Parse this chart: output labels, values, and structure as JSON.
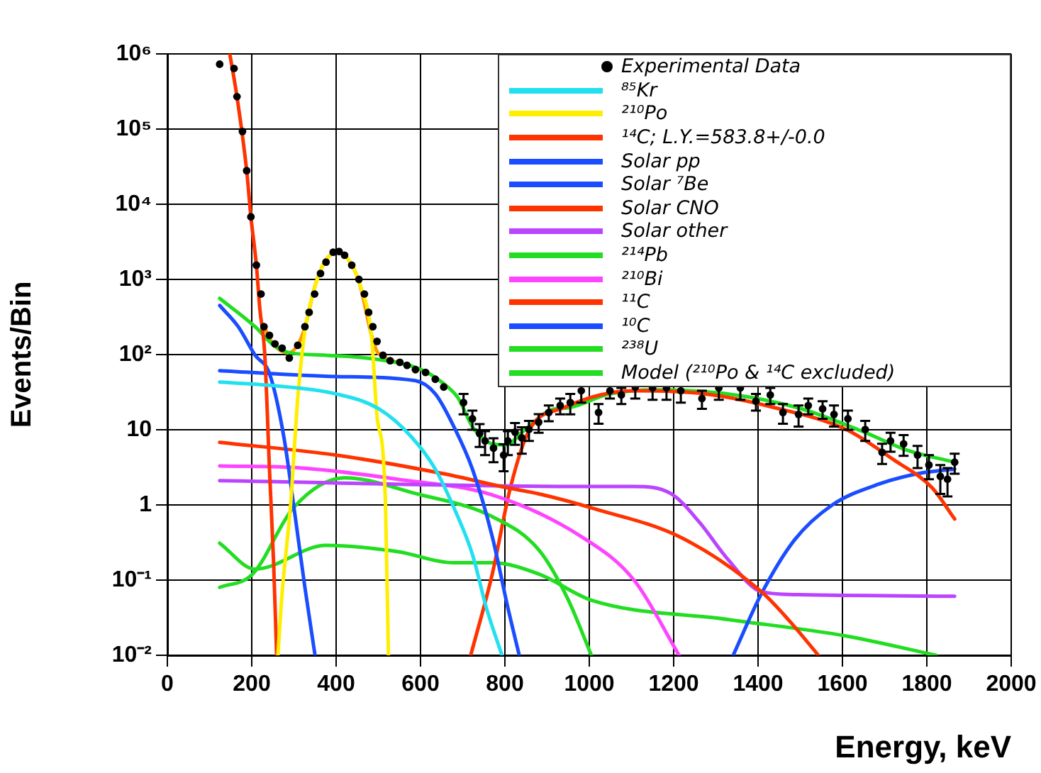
{
  "chart_data": {
    "type": "line",
    "xlabel": "Energy, keV",
    "ylabel": "Events/Bin",
    "log": "y",
    "grid": true,
    "legend": "top right",
    "marker": "none",
    "line_style": "solid",
    "xlim": [
      0,
      2000
    ],
    "xticks": [
      0,
      200,
      400,
      600,
      800,
      1000,
      1200,
      1400,
      1600,
      1800,
      2000
    ],
    "ylim": [
      0.01,
      1000000
    ],
    "yticks": [
      {
        "value": 0.01,
        "label": "10⁻²"
      },
      {
        "value": 0.1,
        "label": "10⁻¹"
      },
      1,
      10,
      {
        "value": 100,
        "label": "10²"
      },
      {
        "value": 1000,
        "label": "10³"
      },
      {
        "value": 10000,
        "label": "10⁴"
      },
      {
        "value": 100000,
        "label": "10⁵"
      },
      {
        "value": 1000000,
        "label": "10⁶"
      }
    ],
    "series": [
      {
        "name": "Experimental Data",
        "type": "scatter",
        "marker": "circle",
        "color": "#000000",
        "x": [
          124,
          158,
          165,
          178,
          188,
          198,
          211,
          222,
          229,
          242,
          255,
          272,
          289,
          309,
          326,
          336,
          349,
          363,
          376,
          393,
          407,
          420,
          437,
          454,
          467,
          477,
          487,
          497,
          511,
          528,
          551,
          568,
          588,
          612,
          635,
          655,
          702,
          723,
          740,
          753,
          773,
          797,
          807,
          824,
          840,
          857,
          880,
          904,
          931,
          955,
          981,
          1022,
          1049,
          1076,
          1109,
          1150,
          1183,
          1217,
          1267,
          1307,
          1358,
          1395,
          1429,
          1459,
          1496,
          1519,
          1553,
          1580,
          1613,
          1654,
          1694,
          1714,
          1745,
          1778,
          1805,
          1832,
          1849,
          1866
        ],
        "values": [
          730000,
          640000,
          270000,
          93000,
          28000,
          6800,
          1550,
          640,
          235,
          180,
          139,
          122,
          90,
          133,
          235,
          365,
          640,
          1200,
          1700,
          2300,
          2350,
          2100,
          1550,
          1000,
          640,
          365,
          235,
          150,
          98,
          83,
          79,
          72,
          63,
          58,
          47,
          37,
          23,
          14,
          8.9,
          7.1,
          5.7,
          4.6,
          7.1,
          9.3,
          7.8,
          10.1,
          12.6,
          17,
          21,
          23,
          33,
          17,
          33,
          29,
          37,
          36,
          36,
          33,
          26,
          36,
          36,
          24,
          29,
          17,
          16,
          21,
          19,
          16,
          14,
          10.1,
          5,
          7.1,
          6.5,
          4.6,
          3.4,
          2.4,
          2.2,
          3.7
        ],
        "errors": [
          null,
          null,
          null,
          null,
          null,
          null,
          null,
          null,
          null,
          null,
          null,
          null,
          null,
          null,
          null,
          null,
          null,
          null,
          null,
          null,
          null,
          null,
          null,
          null,
          null,
          null,
          null,
          null,
          null,
          null,
          null,
          null,
          null,
          null,
          null,
          null,
          7,
          4,
          3,
          2.5,
          2,
          1.8,
          2.5,
          3,
          3,
          3,
          3.5,
          4,
          5,
          7,
          10,
          5,
          7,
          7,
          11,
          11,
          11,
          10,
          7,
          11,
          11,
          6,
          7,
          5,
          5,
          5,
          5,
          5,
          4,
          3,
          1.5,
          2,
          2,
          1.5,
          1.2,
          1,
          0.9,
          1.1
        ]
      },
      {
        "name": "⁸⁵Kr",
        "color": "#22e0f0",
        "x": [
          124,
          242,
          400,
          501,
          578,
          635,
          679,
          723,
          756,
          793
        ],
        "values": [
          43,
          39,
          30,
          19,
          8.1,
          3,
          0.92,
          0.22,
          0.043,
          0.01
        ]
      },
      {
        "name": "²¹⁰Po",
        "color": "#ffee00",
        "x": [
          262,
          272,
          292,
          309,
          326,
          350,
          375,
          405,
          430,
          455,
          484,
          497,
          511,
          517,
          524
        ],
        "values": [
          0.01,
          0.067,
          1,
          26,
          206,
          800,
          1800,
          2300,
          1800,
          900,
          170,
          15,
          5,
          1,
          0.01
        ]
      },
      {
        "name": "¹⁴C; L.Y.=583.8+/-0.0",
        "color": "#ff3300",
        "x": [
          148,
          165,
          188,
          198,
          211,
          219,
          231,
          242,
          252,
          259
        ],
        "values": [
          1000000,
          270000,
          28000,
          6800,
          1550,
          415,
          98,
          3,
          0.16,
          0.01
        ]
      },
      {
        "name": "Solar pp",
        "color": "#1a4dff",
        "x": [
          124,
          168,
          208,
          242,
          276,
          303,
          326,
          350
        ],
        "values": [
          450,
          235,
          98,
          56,
          8.1,
          0.7,
          0.08,
          0.01
        ]
      },
      {
        "name": "Solar ⁷Be",
        "color": "#1a4dff",
        "x": [
          124,
          400,
          588,
          635,
          679,
          723,
          770,
          807,
          834
        ],
        "values": [
          61,
          51,
          45,
          30,
          11,
          3,
          0.38,
          0.043,
          0.01
        ]
      },
      {
        "name": "Solar CNO",
        "color": "#ff3300",
        "x": [
          124,
          400,
          655,
          803,
          881,
          1015,
          1217,
          1408,
          1476,
          1543
        ],
        "values": [
          6.8,
          4.6,
          2.6,
          1.7,
          1.4,
          0.88,
          0.37,
          0.07,
          0.028,
          0.01
        ]
      },
      {
        "name": "Solar other",
        "color": "#bb44ff",
        "x": [
          124,
          981,
          1106,
          1193,
          1261,
          1328,
          1408,
          1496,
          1866
        ],
        "values": [
          2.1,
          1.76,
          1.76,
          1.42,
          0.59,
          0.19,
          0.07,
          0.064,
          0.061
        ]
      },
      {
        "name": "²¹⁴Pb",
        "color": "#22dd22",
        "x": [
          124,
          202,
          299,
          420,
          588,
          770,
          881,
          948,
          1005
        ],
        "values": [
          0.08,
          0.12,
          0.92,
          2.3,
          1.42,
          0.7,
          0.25,
          0.058,
          0.01
        ]
      },
      {
        "name": "²¹⁰Bi",
        "color": "#ff44ff",
        "x": [
          124,
          319,
          545,
          770,
          981,
          1106,
          1213
        ],
        "values": [
          3.3,
          3.1,
          2.2,
          1.36,
          0.38,
          0.1,
          0.01
        ]
      },
      {
        "name": "¹¹C",
        "color": "#ff3300",
        "x": [
          719,
          770,
          813,
          857,
          938,
          1106,
          1274,
          1442,
          1610,
          1721,
          1812,
          1866
        ],
        "values": [
          0.01,
          0.12,
          1.7,
          9.7,
          19.5,
          33,
          30,
          19.5,
          10,
          4,
          1.7,
          0.65
        ]
      },
      {
        "name": "¹⁰C",
        "color": "#1a4dff",
        "x": [
          1341,
          1408,
          1486,
          1576,
          1687,
          1778,
          1866
        ],
        "values": [
          0.01,
          0.066,
          0.34,
          1,
          1.9,
          2.6,
          3
        ]
      },
      {
        "name": "²³⁸U",
        "color": "#22dd22",
        "x": [
          124,
          208,
          376,
          545,
          679,
          770,
          881,
          1005,
          1328,
          1610,
          1822
        ],
        "values": [
          0.31,
          0.14,
          0.29,
          0.24,
          0.17,
          0.17,
          0.12,
          0.054,
          0.03,
          0.018,
          0.01
        ]
      },
      {
        "name": "Model (²¹⁰Po & ¹⁴C excluded)",
        "color": "#22dd22",
        "x": [
          124,
          208,
          252,
          286,
          376,
          501,
          602,
          655,
          689,
          723,
          770,
          803,
          847,
          914,
          948,
          1049,
          1160,
          1328,
          1496,
          1644,
          1755,
          1866
        ],
        "values": [
          560,
          235,
          133,
          107,
          98,
          86,
          63,
          41,
          26.5,
          11,
          6.5,
          6.3,
          10,
          18.7,
          19.5,
          30,
          34,
          30,
          19.5,
          9.7,
          5.3,
          3.7
        ]
      },
      {
        "color": "#ff9900",
        "x": [
          229,
          250,
          286,
          309,
          326,
          350,
          375,
          405,
          430,
          455,
          484,
          497,
          511,
          528,
          551
        ],
        "values": [
          235,
          140,
          105,
          135,
          230,
          820,
          1800,
          2300,
          1800,
          900,
          180,
          110,
          95,
          83,
          79
        ]
      }
    ]
  }
}
